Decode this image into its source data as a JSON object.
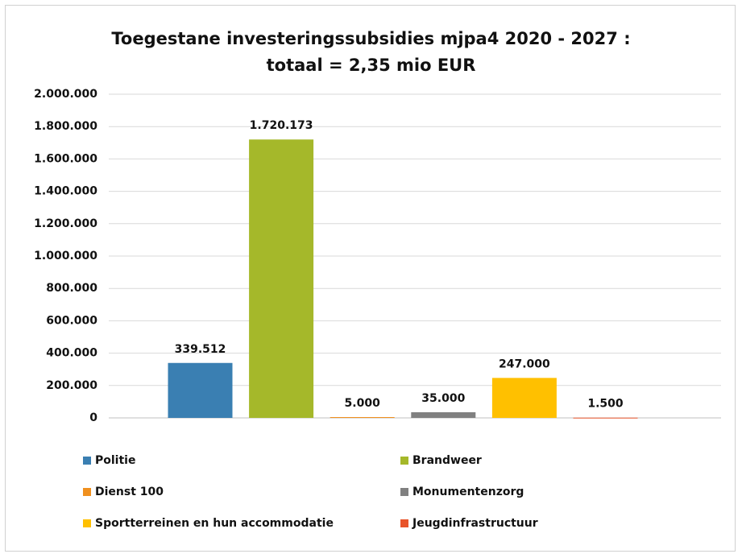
{
  "chart_data": {
    "type": "bar",
    "title": "Toegestane investeringssubsidies mjpa4 2020 - 2027 :\ntotaal = 2,35 mio EUR",
    "categories": [
      null
    ],
    "series": [
      {
        "name": "Politie",
        "color": "#3a7fb2",
        "values": [
          339512
        ],
        "value_labels": [
          "339.512"
        ]
      },
      {
        "name": "Brandweer",
        "color": "#a5b82a",
        "values": [
          1720173
        ],
        "value_labels": [
          "1.720.173"
        ]
      },
      {
        "name": "Dienst 100",
        "color": "#f0901e",
        "values": [
          5000
        ],
        "value_labels": [
          "5.000"
        ]
      },
      {
        "name": "Monumentenzorg",
        "color": "#808080",
        "values": [
          35000
        ],
        "value_labels": [
          "35.000"
        ]
      },
      {
        "name": "Sportterreinen en hun accommodatie",
        "color": "#ffc000",
        "values": [
          247000
        ],
        "value_labels": [
          "247.000"
        ]
      },
      {
        "name": "Jeugdinfrastructuur",
        "color": "#e8542a",
        "values": [
          1500
        ],
        "value_labels": [
          "1.500"
        ]
      }
    ],
    "ylim": [
      0,
      2000000
    ],
    "yticks": [
      0,
      {
        "value": 200000,
        "label": "200.000"
      },
      {
        "value": 400000,
        "label": "400.000"
      },
      {
        "value": 600000,
        "label": "600.000"
      },
      {
        "value": 800000,
        "label": "800.000"
      },
      {
        "value": 1000000,
        "label": "1.000.000"
      },
      {
        "value": 1200000,
        "label": "1.200.000"
      },
      {
        "value": 1400000,
        "label": "1.400.000"
      },
      {
        "value": 1600000,
        "label": "1.600.000"
      },
      {
        "value": 1800000,
        "label": "1.800.000"
      },
      {
        "value": 2000000,
        "label": "2.000.000"
      }
    ],
    "grid": true,
    "legend": "bottom"
  }
}
